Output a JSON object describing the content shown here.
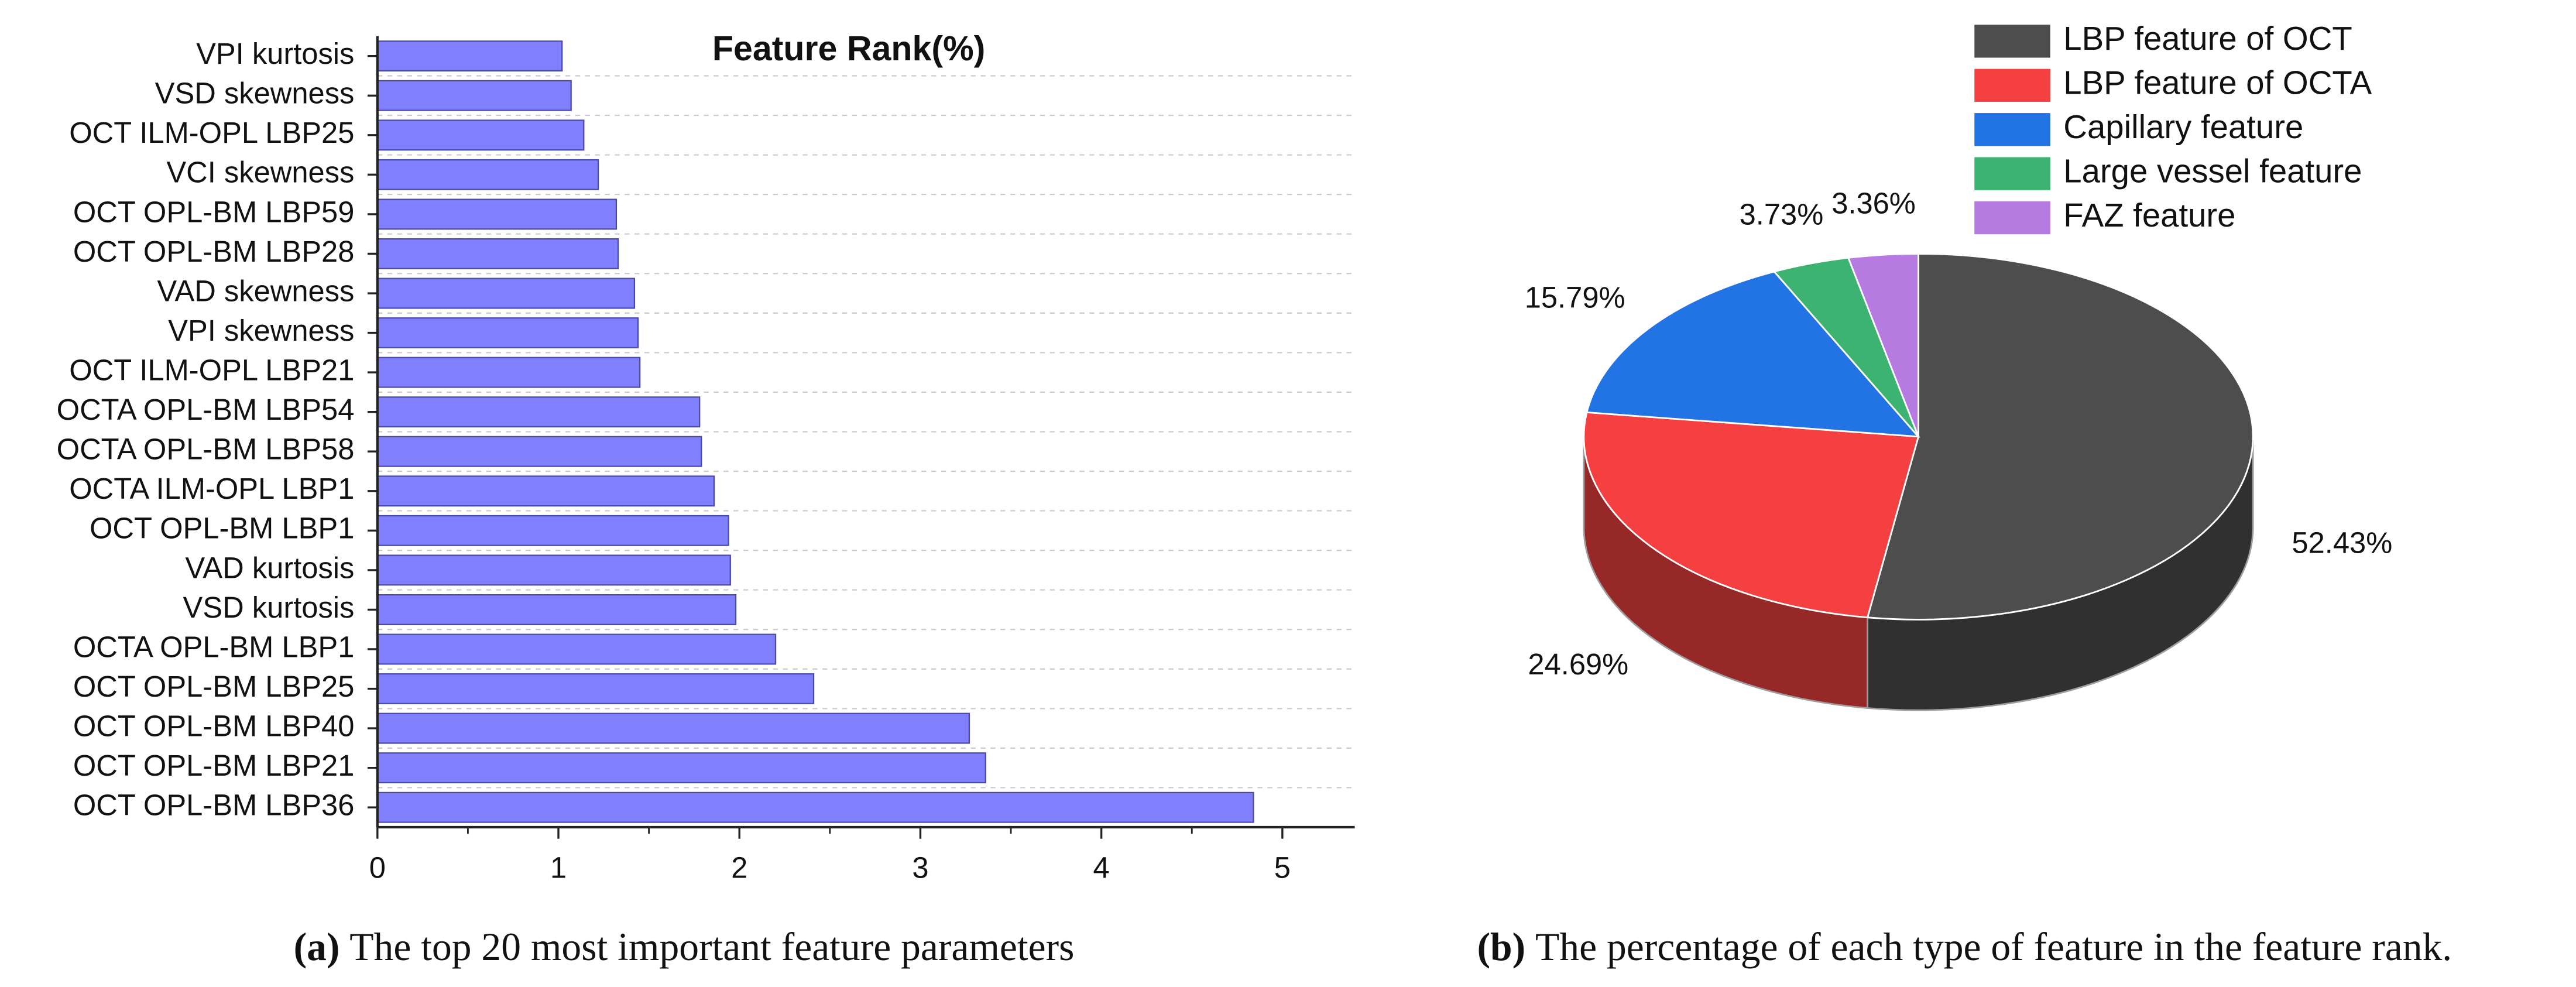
{
  "chart_data": [
    {
      "type": "bar",
      "orientation": "horizontal",
      "title": "Feature Rank(%)",
      "caption_label": "(a)",
      "caption": "The top 20 most important feature parameters",
      "categories": [
        "VPI kurtosis",
        "VSD skewness",
        "OCT ILM-OPL LBP25",
        "VCI skewness",
        "OCT OPL-BM LBP59",
        "OCT OPL-BM LBP28",
        "VAD skewness",
        "VPI skewness",
        "OCT ILM-OPL LBP21",
        "OCTA OPL-BM LBP54",
        "OCTA OPL-BM LBP58",
        "OCTA ILM-OPL LBP1",
        "OCT OPL-BM LBP1",
        "VAD kurtosis",
        "VSD kurtosis",
        "OCTA OPL-BM LBP1",
        "OCT OPL-BM LBP25",
        "OCT OPL-BM LBP40",
        "OCT OPL-BM LBP21",
        "OCT OPL-BM LBP36"
      ],
      "values": [
        1.02,
        1.07,
        1.14,
        1.22,
        1.32,
        1.33,
        1.42,
        1.44,
        1.45,
        1.78,
        1.79,
        1.86,
        1.94,
        1.95,
        1.98,
        2.2,
        2.41,
        3.27,
        3.36,
        4.84
      ],
      "color": "#8080ff",
      "xlim": [
        0,
        5.4
      ],
      "xticks": [
        0,
        1,
        2,
        3,
        4,
        5
      ],
      "grid": true
    },
    {
      "type": "pie",
      "style": "3d",
      "caption_label": "(b)",
      "caption": "The percentage of each type of feature in the feature rank.",
      "categories": [
        "LBP feature of OCT",
        "LBP feature of OCTA",
        "Capillary feature",
        "Large vessel feature",
        "FAZ feature"
      ],
      "values": [
        52.43,
        24.69,
        15.79,
        3.73,
        3.36
      ],
      "value_labels": [
        "52.43%",
        "24.69%",
        "15.79%",
        "3.73%",
        "3.36%"
      ],
      "colors": [
        "#4d4d4d",
        "#f44040",
        "#2273e3",
        "#3cb371",
        "#b57be0"
      ],
      "legend": "upper-right"
    }
  ]
}
